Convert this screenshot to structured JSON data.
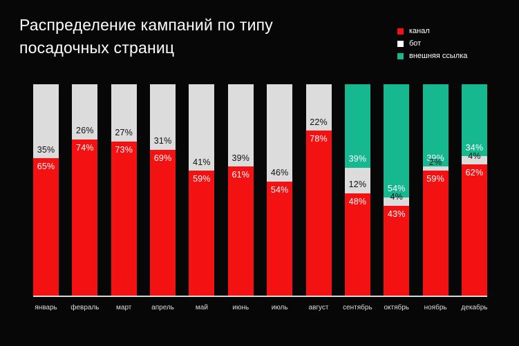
{
  "title": "Распределение кампаний по типу посадочных страниц",
  "legend": {
    "items": [
      {
        "label": "канал",
        "color": "#f31112"
      },
      {
        "label": "бот",
        "color": "#ffffff"
      },
      {
        "label": "внешняя ссылка",
        "color": "#16b890"
      }
    ]
  },
  "chart_data": {
    "type": "bar",
    "stacked": true,
    "percent": true,
    "title": "Распределение кампаний по типу посадочных страниц",
    "categories": [
      "январь",
      "февраль",
      "март",
      "апрель",
      "май",
      "июнь",
      "июль",
      "август",
      "сентябрь",
      "октябрь",
      "ноябрь",
      "декабрь"
    ],
    "series": [
      {
        "name": "канал",
        "key": "kanal",
        "color": "#f31112",
        "label_color": "#ffffff",
        "label_anchor": "top",
        "values": [
          65,
          74,
          73,
          69,
          59,
          61,
          54,
          78,
          48,
          43,
          59,
          62
        ]
      },
      {
        "name": "бот",
        "key": "bot",
        "color": "#dcdcdc",
        "label_color": "#111111",
        "label_anchor": "bottom",
        "values": [
          35,
          26,
          27,
          31,
          41,
          39,
          46,
          22,
          12,
          4,
          2,
          4
        ]
      },
      {
        "name": "внешняя ссылка",
        "key": "vneshnyaya-ssylka",
        "color": "#16b890",
        "label_color": "#ffffff",
        "label_anchor": "bottom",
        "values": [
          0,
          0,
          0,
          0,
          0,
          0,
          0,
          0,
          39,
          54,
          39,
          34
        ]
      }
    ],
    "ylim": [
      0,
      100
    ],
    "grid": false,
    "legend_position": "top-right",
    "background": "#070707"
  }
}
